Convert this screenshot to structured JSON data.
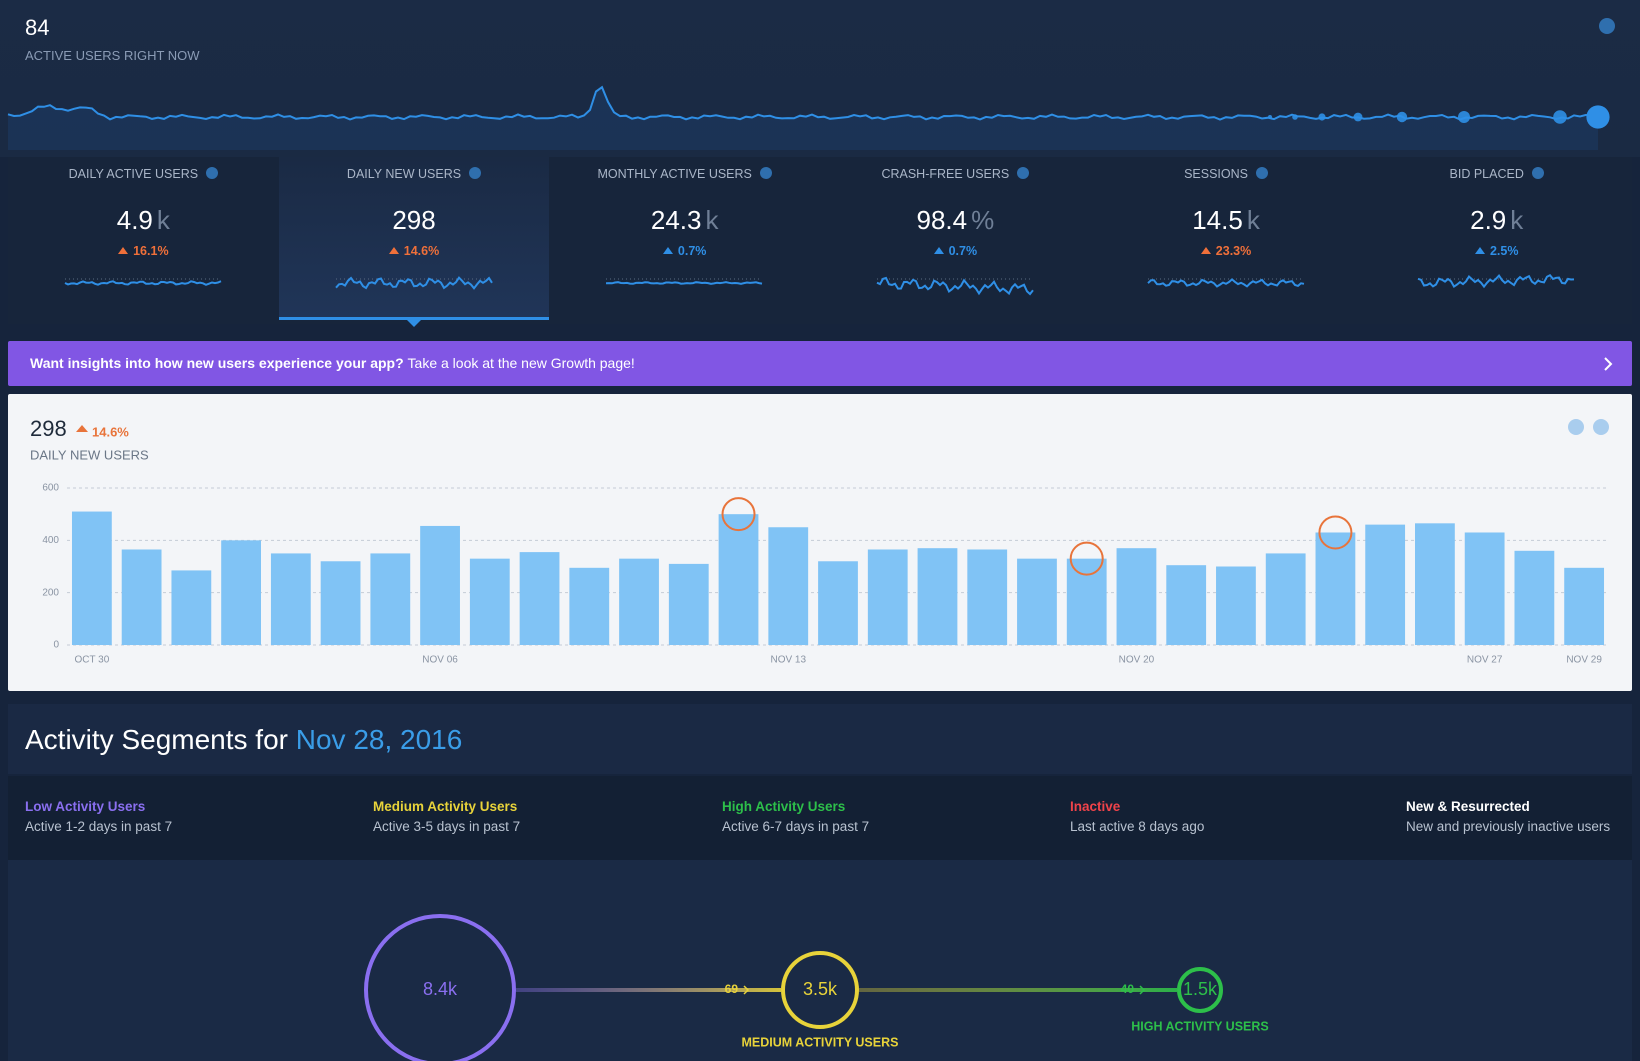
{
  "header": {
    "value": "84",
    "label": "ACTIVE USERS RIGHT NOW"
  },
  "metrics": [
    {
      "label": "DAILY ACTIVE USERS",
      "value": "4.9",
      "unit": "k",
      "change": "16.1%",
      "change_color": "#f0703a"
    },
    {
      "label": "DAILY NEW USERS",
      "value": "298",
      "change": "14.6%",
      "change_color": "#f0703a",
      "selected": true
    },
    {
      "label": "MONTHLY ACTIVE USERS",
      "value": "24.3",
      "unit": "k",
      "change": "0.7%",
      "change_color": "#2f8fe6"
    },
    {
      "label": "CRASH-FREE USERS",
      "value": "98.4",
      "unit": "%",
      "change": "0.7%",
      "change_color": "#2f8fe6"
    },
    {
      "label": "SESSIONS",
      "value": "14.5",
      "unit": "k",
      "change": "23.3%",
      "change_color": "#f0703a"
    },
    {
      "label": "BID PLACED",
      "value": "2.9",
      "unit": "k",
      "change": "2.5%",
      "change_color": "#2f8fe6"
    }
  ],
  "banner": {
    "bold": "Want insights into how new users experience your app?",
    "text": "Take a look at the new Growth page!"
  },
  "chart_data": {
    "type": "bar",
    "headline": "298",
    "change": "14.6%",
    "title": "DAILY NEW USERS",
    "categories": [
      "OCT 30",
      null,
      null,
      null,
      null,
      null,
      null,
      "NOV 06",
      null,
      null,
      null,
      null,
      null,
      null,
      "NOV 13",
      null,
      null,
      null,
      null,
      null,
      null,
      "NOV 20",
      null,
      null,
      null,
      null,
      null,
      null,
      "NOV 27",
      null,
      "NOV 29"
    ],
    "values": [
      510,
      365,
      285,
      400,
      350,
      320,
      350,
      455,
      330,
      355,
      295,
      330,
      310,
      500,
      450,
      320,
      365,
      370,
      365,
      330,
      330,
      370,
      305,
      300,
      350,
      430,
      460,
      465,
      430,
      360,
      295
    ],
    "color": "#80c3f5",
    "marker_color": "#e8743b",
    "markers": [
      13,
      20,
      25
    ],
    "ylim": [
      0,
      600
    ],
    "yticks": [
      0,
      200,
      400,
      600
    ],
    "grid": true
  },
  "segments": {
    "title": "Activity Segments for",
    "date": "Nov 28, 2016",
    "legend": [
      {
        "name": "Low Activity Users",
        "description": "Active 1-2 days in past 7",
        "color": "#8a6ff0"
      },
      {
        "name": "Medium Activity Users",
        "description": "Active 3-5 days in past 7",
        "color": "#e8d33a"
      },
      {
        "name": "High Activity Users",
        "description": "Active 6-7 days in past 7",
        "color": "#2dbf4a"
      },
      {
        "name": "Inactive",
        "description": "Last active 8 days ago",
        "color": "#f0434a"
      },
      {
        "name": "New & Resurrected",
        "description": "New and previously inactive users",
        "color": "#ffffff"
      }
    ],
    "nodes": [
      {
        "value": "8.4k"
      },
      {
        "value": "3.5k",
        "label": "MEDIUM ACTIVITY USERS"
      },
      {
        "value": "1.5k",
        "label": "HIGH ACTIVITY USERS"
      }
    ],
    "transitions": [
      "69",
      "40"
    ]
  }
}
